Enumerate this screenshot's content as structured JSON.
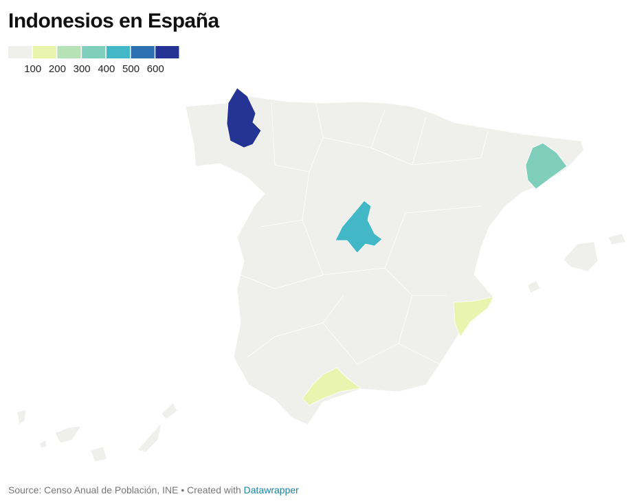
{
  "header": {
    "title": "Indonesios en España"
  },
  "legend": {
    "colors": [
      "#efefec",
      "#e9f4ae",
      "#b7e1b6",
      "#7fcebb",
      "#42b7c5",
      "#2c70b1",
      "#253494"
    ],
    "ticks": [
      100,
      200,
      300,
      400,
      500,
      600
    ]
  },
  "footer": {
    "source": "Source: Censo Anual de Población, INE • Created with",
    "link": "Datawrapper"
  }
}
